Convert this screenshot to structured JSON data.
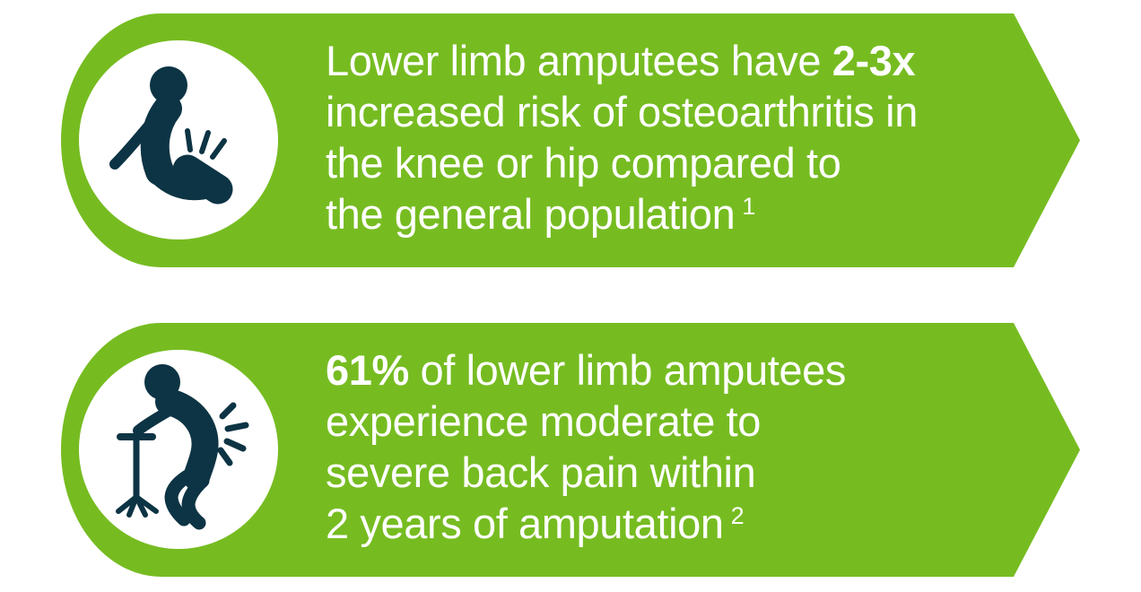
{
  "colors": {
    "banner_green": "#76bc21",
    "icon_ink": "#0d3444",
    "circle_white": "#ffffff",
    "text_white": "#ffffff",
    "background_white": "#ffffff"
  },
  "banners": [
    {
      "name": "osteoarthritis-risk",
      "icon": "seated-amputee-knee-pain-icon",
      "lines": [
        {
          "parts": [
            {
              "t": "Lower limb amputees have ",
              "b": false
            },
            {
              "t": "2-3x",
              "b": true
            }
          ]
        },
        {
          "parts": [
            {
              "t": "increased risk of osteoarthritis in",
              "b": false
            }
          ]
        },
        {
          "parts": [
            {
              "t": "the knee or hip compared to",
              "b": false
            }
          ]
        },
        {
          "parts": [
            {
              "t": "the general population",
              "b": false
            },
            {
              "t": "1",
              "sup": true
            }
          ]
        }
      ]
    },
    {
      "name": "back-pain-statistic",
      "icon": "bent-person-with-cane-back-pain-icon",
      "lines": [
        {
          "parts": [
            {
              "t": "61%",
              "b": true
            },
            {
              "t": " of lower limb amputees",
              "b": false
            }
          ]
        },
        {
          "parts": [
            {
              "t": "experience moderate to",
              "b": false
            }
          ]
        },
        {
          "parts": [
            {
              "t": "severe back pain within",
              "b": false
            }
          ]
        },
        {
          "parts": [
            {
              "t": "2 years of amputation",
              "b": false
            },
            {
              "t": "2",
              "sup": true
            }
          ]
        }
      ]
    }
  ]
}
